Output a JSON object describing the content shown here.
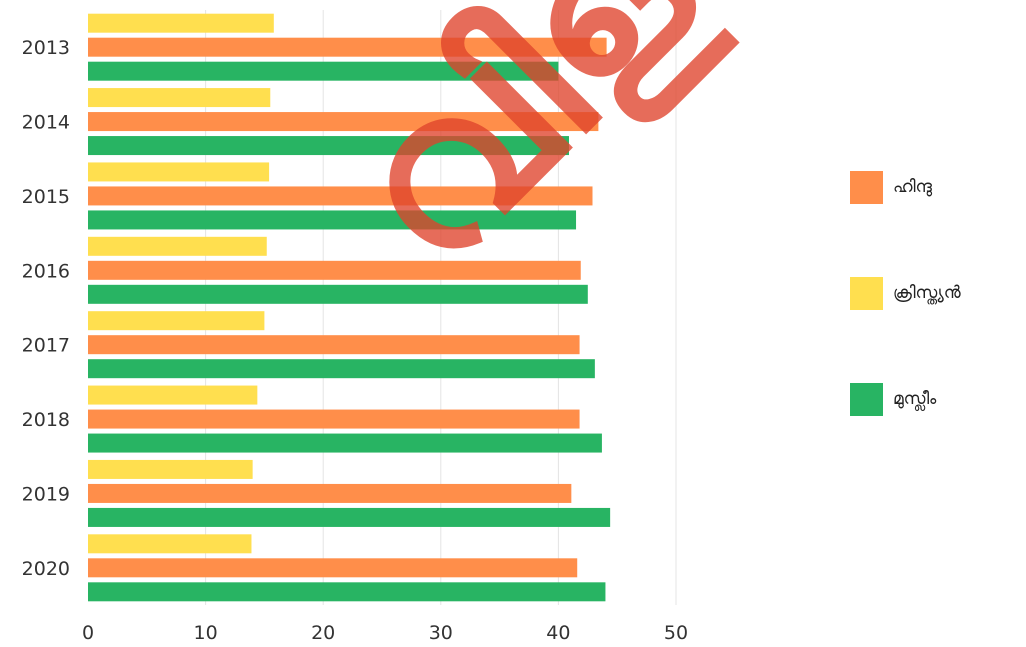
{
  "chart_data": {
    "type": "bar",
    "orientation": "horizontal",
    "categories": [
      "2013",
      "2014",
      "2015",
      "2016",
      "2017",
      "2018",
      "2019",
      "2020"
    ],
    "series": [
      {
        "name": "ക്രിസ്ത്യൻ",
        "color": "#FFDF4F",
        "values": [
          15.8,
          15.5,
          15.4,
          15.2,
          15.0,
          14.4,
          14.0,
          13.9
        ]
      },
      {
        "name": "ഹിന്ദു",
        "color": "#FF8E4A",
        "values": [
          44.1,
          43.4,
          42.9,
          41.9,
          41.8,
          41.8,
          41.1,
          41.6
        ]
      },
      {
        "name": "മുസ്ലീം",
        "color": "#28B463",
        "values": [
          40.0,
          40.9,
          41.5,
          42.5,
          43.1,
          43.7,
          44.4,
          44.0
        ]
      }
    ],
    "xlim": [
      0,
      50
    ],
    "xticks": [
      "0",
      "10",
      "20",
      "30",
      "40",
      "50"
    ],
    "grid": "vertical",
    "legend_position": "right",
    "legend": [
      {
        "label": "ഹിന്ദു",
        "color": "#FF8E4A"
      },
      {
        "label": "ക്രിസ്ത്യൻ",
        "color": "#FFDF4F"
      },
      {
        "label": "മുസ്ലീം",
        "color": "#28B463"
      }
    ],
    "title": "",
    "xlabel": "",
    "ylabel": ""
  },
  "watermark": "വിളമ്പരം"
}
